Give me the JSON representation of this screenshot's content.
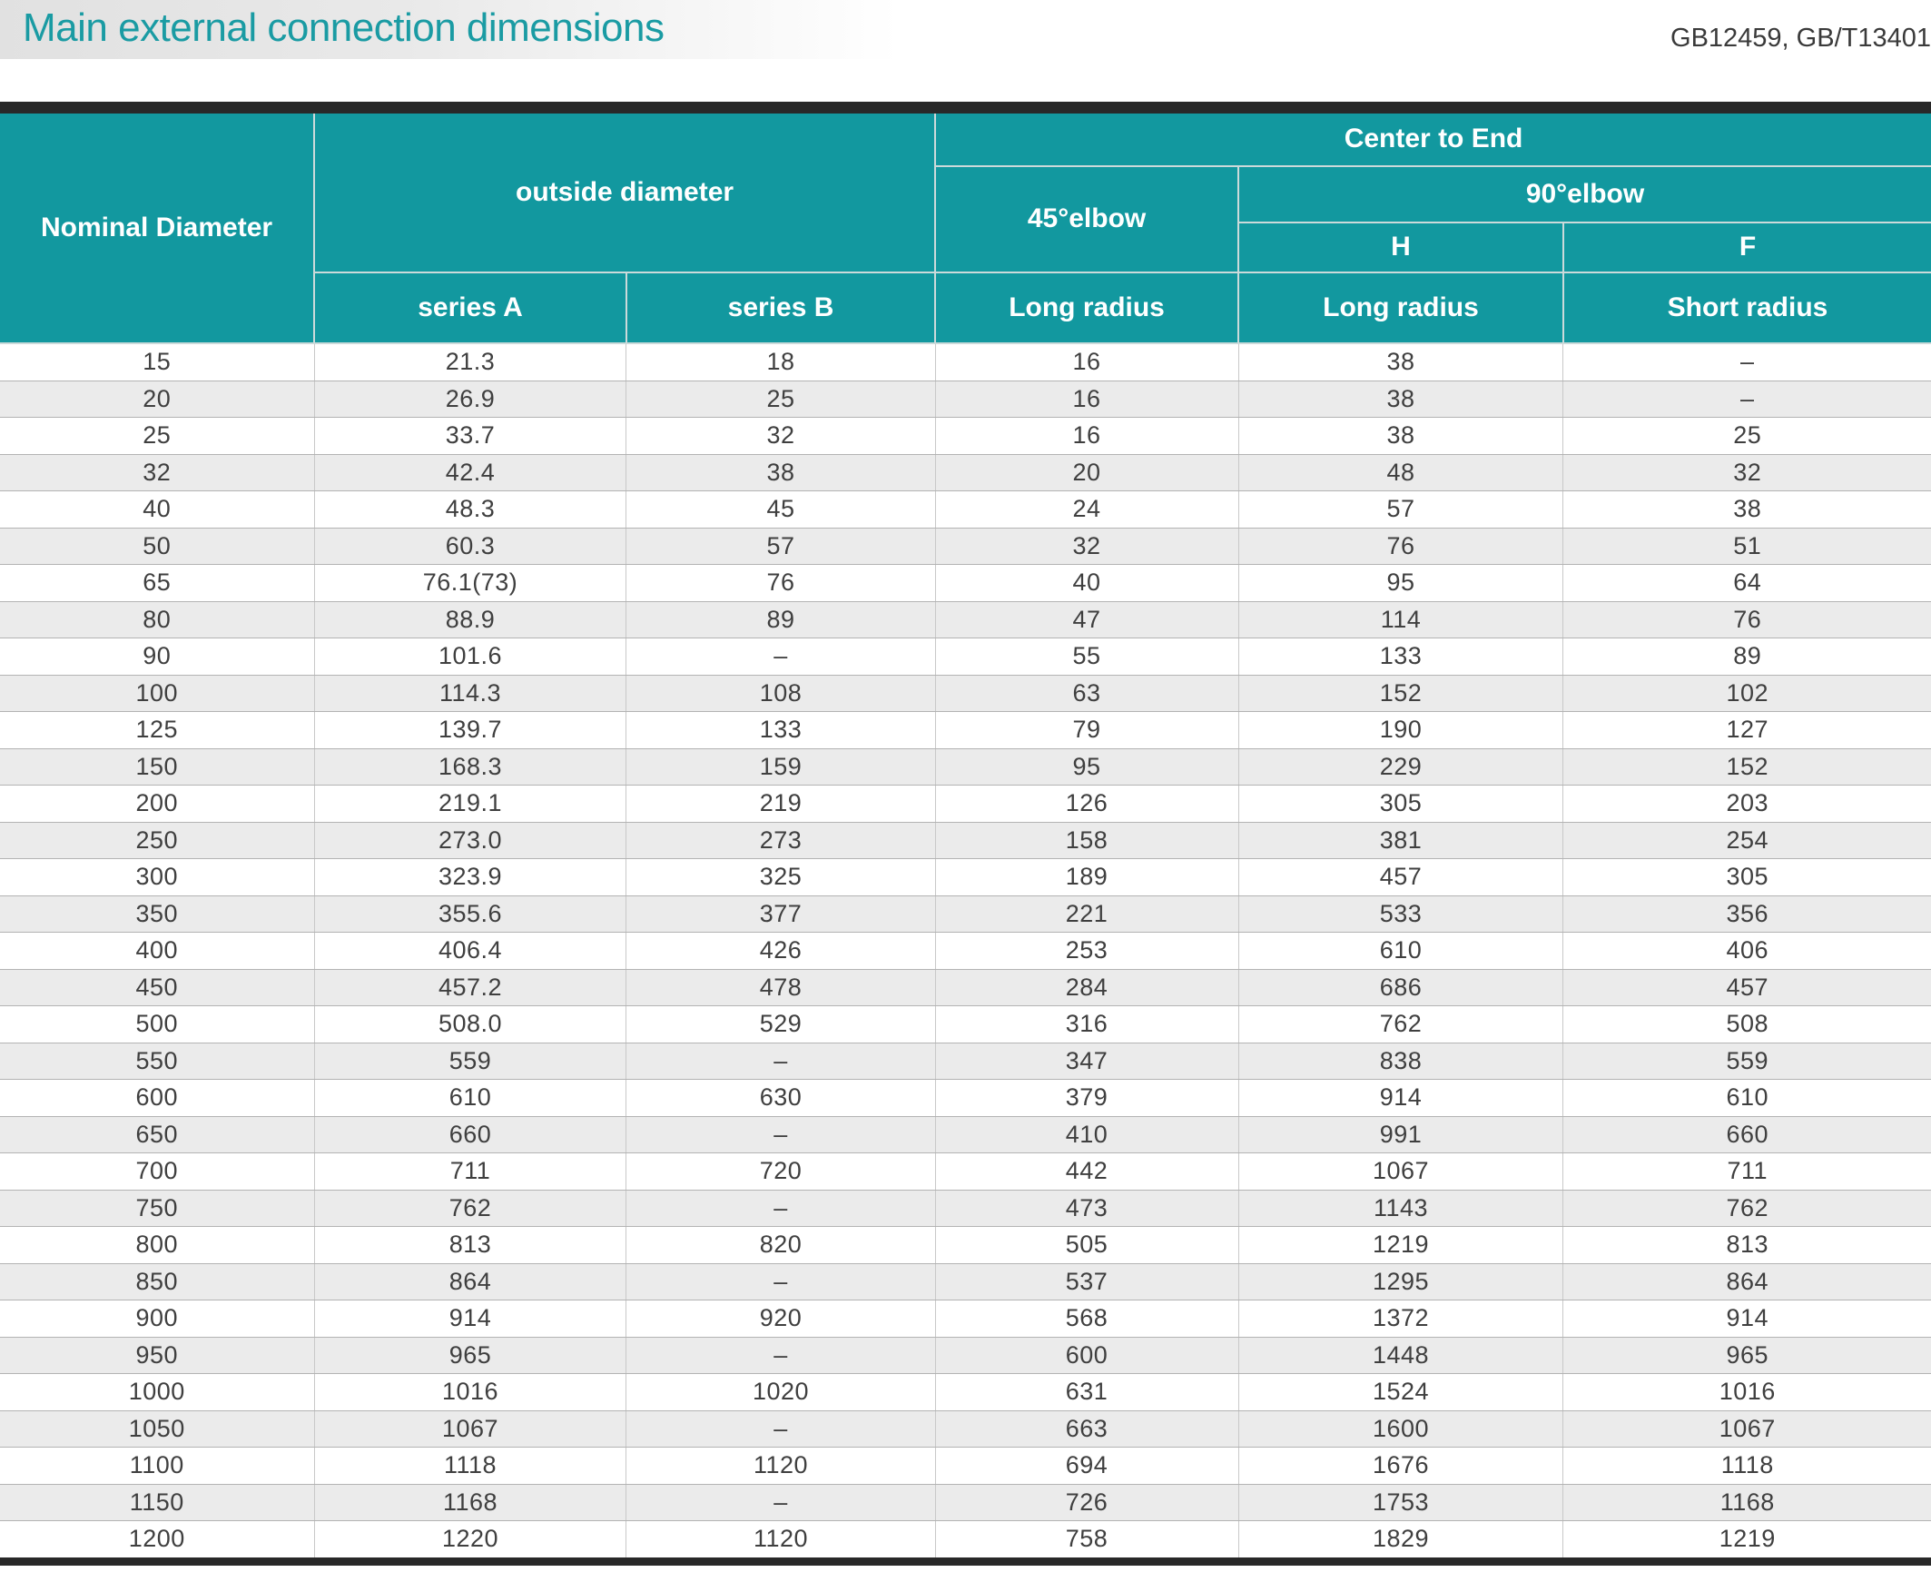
{
  "header_bar": {
    "title": "Main external connection dimensions",
    "standards": "GB12459, GB/T13401"
  },
  "table": {
    "header": {
      "nominal_diameter": "Nominal Diameter",
      "outside_diameter": "outside diameter",
      "center_to_end": "Center to End",
      "elbow_45": "45°elbow",
      "elbow_90": "90°elbow",
      "h": "H",
      "f": "F",
      "series_a": "series A",
      "series_b": "series B",
      "long_radius_45": "Long radius",
      "long_radius_h": "Long radius",
      "short_radius_f": "Short radius"
    },
    "rows": [
      [
        "15",
        "21.3",
        "18",
        "16",
        "38",
        "–"
      ],
      [
        "20",
        "26.9",
        "25",
        "16",
        "38",
        "–"
      ],
      [
        "25",
        "33.7",
        "32",
        "16",
        "38",
        "25"
      ],
      [
        "32",
        "42.4",
        "38",
        "20",
        "48",
        "32"
      ],
      [
        "40",
        "48.3",
        "45",
        "24",
        "57",
        "38"
      ],
      [
        "50",
        "60.3",
        "57",
        "32",
        "76",
        "51"
      ],
      [
        "65",
        "76.1(73)",
        "76",
        "40",
        "95",
        "64"
      ],
      [
        "80",
        "88.9",
        "89",
        "47",
        "114",
        "76"
      ],
      [
        "90",
        "101.6",
        "–",
        "55",
        "133",
        "89"
      ],
      [
        "100",
        "114.3",
        "108",
        "63",
        "152",
        "102"
      ],
      [
        "125",
        "139.7",
        "133",
        "79",
        "190",
        "127"
      ],
      [
        "150",
        "168.3",
        "159",
        "95",
        "229",
        "152"
      ],
      [
        "200",
        "219.1",
        "219",
        "126",
        "305",
        "203"
      ],
      [
        "250",
        "273.0",
        "273",
        "158",
        "381",
        "254"
      ],
      [
        "300",
        "323.9",
        "325",
        "189",
        "457",
        "305"
      ],
      [
        "350",
        "355.6",
        "377",
        "221",
        "533",
        "356"
      ],
      [
        "400",
        "406.4",
        "426",
        "253",
        "610",
        "406"
      ],
      [
        "450",
        "457.2",
        "478",
        "284",
        "686",
        "457"
      ],
      [
        "500",
        "508.0",
        "529",
        "316",
        "762",
        "508"
      ],
      [
        "550",
        "559",
        "–",
        "347",
        "838",
        "559"
      ],
      [
        "600",
        "610",
        "630",
        "379",
        "914",
        "610"
      ],
      [
        "650",
        "660",
        "–",
        "410",
        "991",
        "660"
      ],
      [
        "700",
        "711",
        "720",
        "442",
        "1067",
        "711"
      ],
      [
        "750",
        "762",
        "–",
        "473",
        "1143",
        "762"
      ],
      [
        "800",
        "813",
        "820",
        "505",
        "1219",
        "813"
      ],
      [
        "850",
        "864",
        "–",
        "537",
        "1295",
        "864"
      ],
      [
        "900",
        "914",
        "920",
        "568",
        "1372",
        "914"
      ],
      [
        "950",
        "965",
        "–",
        "600",
        "1448",
        "965"
      ],
      [
        "1000",
        "1016",
        "1020",
        "631",
        "1524",
        "1016"
      ],
      [
        "1050",
        "1067",
        "–",
        "663",
        "1600",
        "1067"
      ],
      [
        "1100",
        "1118",
        "1120",
        "694",
        "1676",
        "1118"
      ],
      [
        "1150",
        "1168",
        "–",
        "726",
        "1753",
        "1168"
      ],
      [
        "1200",
        "1220",
        "1120",
        "758",
        "1829",
        "1219"
      ]
    ]
  },
  "colors": {
    "header_teal": "#12989F",
    "title_teal": "#1A9BA3",
    "stripe_gray": "#EBEBEB",
    "dark_border": "#282828"
  }
}
